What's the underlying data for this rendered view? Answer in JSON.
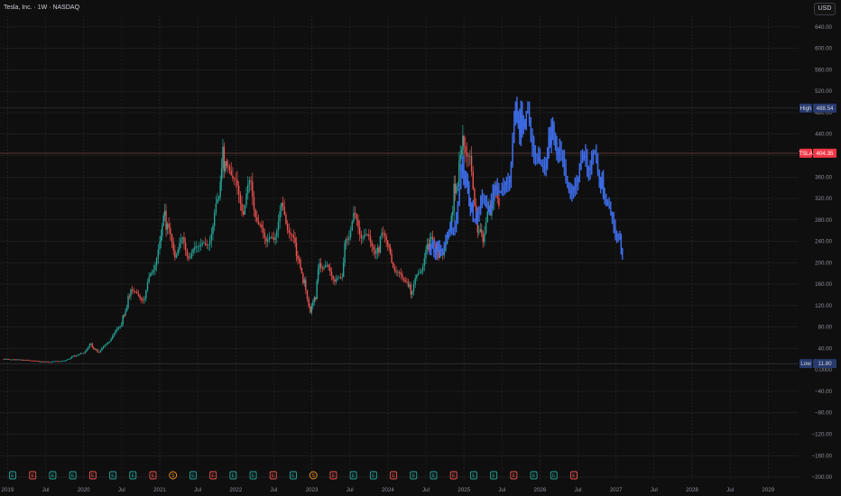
{
  "header": {
    "title": "Tesla, Inc. · 1W · NASDAQ",
    "currency": "USD"
  },
  "colors": {
    "background": "#0f0f0f",
    "grid": "#2a2a2a",
    "up": "#26a69a",
    "down": "#ef5350",
    "projection": "#3d6ce8",
    "last_price_tag": "#f23645",
    "high_low_tag": "#283a6e"
  },
  "markers": {
    "high": {
      "label": "High",
      "value": "488.54"
    },
    "last": {
      "label": "TSLA",
      "value": "404.35"
    },
    "low": {
      "label": "Low",
      "value": "11.80"
    }
  },
  "event_badges": [
    "E",
    "E",
    "E",
    "E",
    "E",
    "E",
    "E",
    "E",
    "S",
    "E",
    "E",
    "E",
    "E",
    "E",
    "E",
    "S",
    "E",
    "E",
    "E",
    "E",
    "E",
    "E",
    "E",
    "E",
    "E",
    "E",
    "E",
    "E",
    "E"
  ],
  "chart_data": {
    "type": "candlestick",
    "title": "Tesla, Inc. · 1W · NASDAQ",
    "y_ticks": [
      "640.00",
      "600.00",
      "560.00",
      "520.00",
      "480.00",
      "440.00",
      "400.00",
      "360.00",
      "320.00",
      "280.00",
      "240.00",
      "200.00",
      "160.00",
      "120.00",
      "80.00",
      "40.00",
      "0.0000",
      "−40.00",
      "−80.00",
      "−120.00",
      "−160.00",
      "−200.00"
    ],
    "x_ticks": [
      "2019",
      "Jul",
      "2020",
      "Jul",
      "2021",
      "Jul",
      "2022",
      "Jul",
      "2023",
      "Jul",
      "2024",
      "Jul",
      "2025",
      "Jul",
      "2026",
      "Jul",
      "2027",
      "Jul",
      "2028",
      "Jul",
      "2029"
    ],
    "ylim": [
      -205,
      660
    ],
    "xlim": [
      2018.9,
      2029.4
    ],
    "grid": true,
    "series": [
      {
        "name": "TSLA",
        "kind": "historical",
        "points": [
          [
            2018.95,
            20
          ],
          [
            2019.2,
            19
          ],
          [
            2019.4,
            16
          ],
          [
            2019.55,
            15
          ],
          [
            2019.75,
            17
          ],
          [
            2019.9,
            28
          ],
          [
            2020.0,
            30
          ],
          [
            2020.08,
            50
          ],
          [
            2020.13,
            40
          ],
          [
            2020.2,
            33
          ],
          [
            2020.3,
            50
          ],
          [
            2020.4,
            65
          ],
          [
            2020.5,
            90
          ],
          [
            2020.55,
            110
          ],
          [
            2020.62,
            150
          ],
          [
            2020.7,
            140
          ],
          [
            2020.8,
            135
          ],
          [
            2020.88,
            175
          ],
          [
            2021.0,
            235
          ],
          [
            2021.05,
            290
          ],
          [
            2021.1,
            270
          ],
          [
            2021.2,
            220
          ],
          [
            2021.3,
            235
          ],
          [
            2021.4,
            215
          ],
          [
            2021.5,
            230
          ],
          [
            2021.6,
            235
          ],
          [
            2021.7,
            260
          ],
          [
            2021.78,
            330
          ],
          [
            2021.83,
            400
          ],
          [
            2021.9,
            370
          ],
          [
            2022.0,
            350
          ],
          [
            2022.1,
            300
          ],
          [
            2022.2,
            345
          ],
          [
            2022.3,
            270
          ],
          [
            2022.4,
            240
          ],
          [
            2022.5,
            250
          ],
          [
            2022.6,
            295
          ],
          [
            2022.7,
            270
          ],
          [
            2022.78,
            230
          ],
          [
            2022.85,
            190
          ],
          [
            2022.92,
            150
          ],
          [
            2022.98,
            110
          ],
          [
            2023.05,
            140
          ],
          [
            2023.1,
            205
          ],
          [
            2023.2,
            190
          ],
          [
            2023.3,
            165
          ],
          [
            2023.4,
            180
          ],
          [
            2023.45,
            250
          ],
          [
            2023.55,
            280
          ],
          [
            2023.65,
            255
          ],
          [
            2023.75,
            250
          ],
          [
            2023.83,
            210
          ],
          [
            2023.9,
            240
          ],
          [
            2023.98,
            250
          ],
          [
            2024.05,
            200
          ],
          [
            2024.15,
            180
          ],
          [
            2024.25,
            160
          ],
          [
            2024.32,
            145
          ],
          [
            2024.4,
            180
          ],
          [
            2024.5,
            220
          ],
          [
            2024.57,
            250
          ],
          [
            2024.65,
            215
          ],
          [
            2024.72,
            220
          ],
          [
            2024.8,
            245
          ],
          [
            2024.87,
            330
          ],
          [
            2024.92,
            350
          ],
          [
            2024.97,
            430
          ],
          [
            2025.0,
            410
          ],
          [
            2025.08,
            400
          ],
          [
            2025.12,
            340
          ],
          [
            2025.18,
            260
          ],
          [
            2025.25,
            250
          ],
          [
            2025.33,
            290
          ],
          [
            2025.4,
            330
          ],
          [
            2025.48,
            300
          ]
        ]
      },
      {
        "name": "TSLA projection",
        "kind": "projection",
        "points": [
          [
            2024.55,
            230
          ],
          [
            2024.68,
            225
          ],
          [
            2024.8,
            245
          ],
          [
            2024.9,
            295
          ],
          [
            2024.98,
            370
          ],
          [
            2025.05,
            340
          ],
          [
            2025.12,
            280
          ],
          [
            2025.2,
            300
          ],
          [
            2025.3,
            315
          ],
          [
            2025.4,
            325
          ],
          [
            2025.5,
            340
          ],
          [
            2025.6,
            360
          ],
          [
            2025.68,
            475
          ],
          [
            2025.75,
            455
          ],
          [
            2025.82,
            470
          ],
          [
            2025.9,
            420
          ],
          [
            2026.0,
            390
          ],
          [
            2026.08,
            380
          ],
          [
            2026.15,
            455
          ],
          [
            2026.22,
            420
          ],
          [
            2026.3,
            380
          ],
          [
            2026.4,
            330
          ],
          [
            2026.5,
            360
          ],
          [
            2026.6,
            400
          ],
          [
            2026.7,
            390
          ],
          [
            2026.78,
            360
          ],
          [
            2026.85,
            320
          ],
          [
            2026.95,
            285
          ],
          [
            2027.05,
            240
          ],
          [
            2027.1,
            200
          ]
        ]
      }
    ]
  }
}
